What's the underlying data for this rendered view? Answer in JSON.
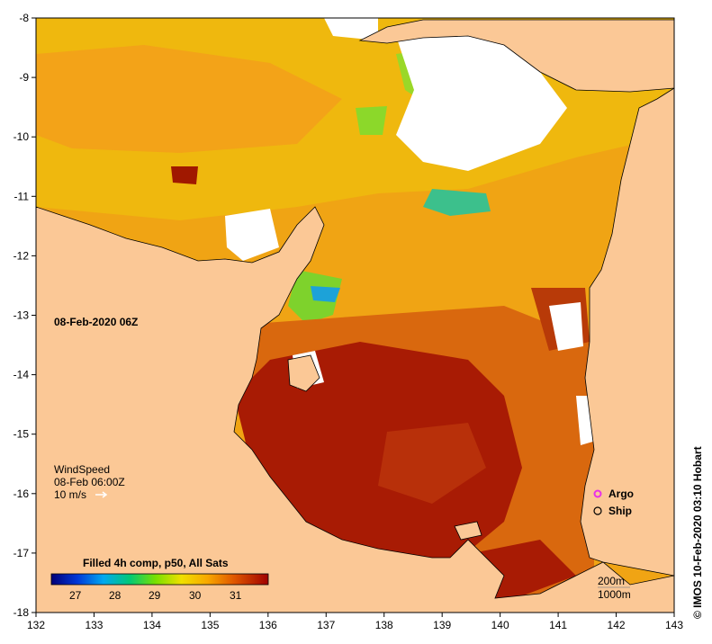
{
  "map": {
    "date_label": "08-Feb-2020 06Z",
    "credit": "© IMOS 10-Feb-2020 03:10 Hobart",
    "x_ticks": [
      "132",
      "133",
      "134",
      "135",
      "136",
      "137",
      "138",
      "139",
      "140",
      "141",
      "142",
      "143"
    ],
    "y_ticks": [
      "-8",
      "-9",
      "-10",
      "-11",
      "-12",
      "-13",
      "-14",
      "-15",
      "-16",
      "-17",
      "-18"
    ],
    "lon_range": [
      132,
      143
    ],
    "lat_range": [
      -18,
      -8
    ]
  },
  "wind": {
    "title": "WindSpeed",
    "time": "08-Feb 06:00Z",
    "scale": "10 m/s"
  },
  "legend": {
    "title": "Filled 4h comp, p50, All Sats",
    "ticks": [
      "27",
      "28",
      "29",
      "30",
      "31"
    ],
    "argo": "Argo",
    "ship": "Ship",
    "contour_200": "200m",
    "contour_1000": "1000m"
  },
  "colors": {
    "land": "#fbc896",
    "no_data": "#ffffff",
    "sst_hot": "#a51400",
    "sst_warm": "#e07010",
    "sst_mid": "#f3a514",
    "sst_cool": "#e8c20c",
    "sst_green": "#8fdc28",
    "argo": "#e830e8"
  }
}
